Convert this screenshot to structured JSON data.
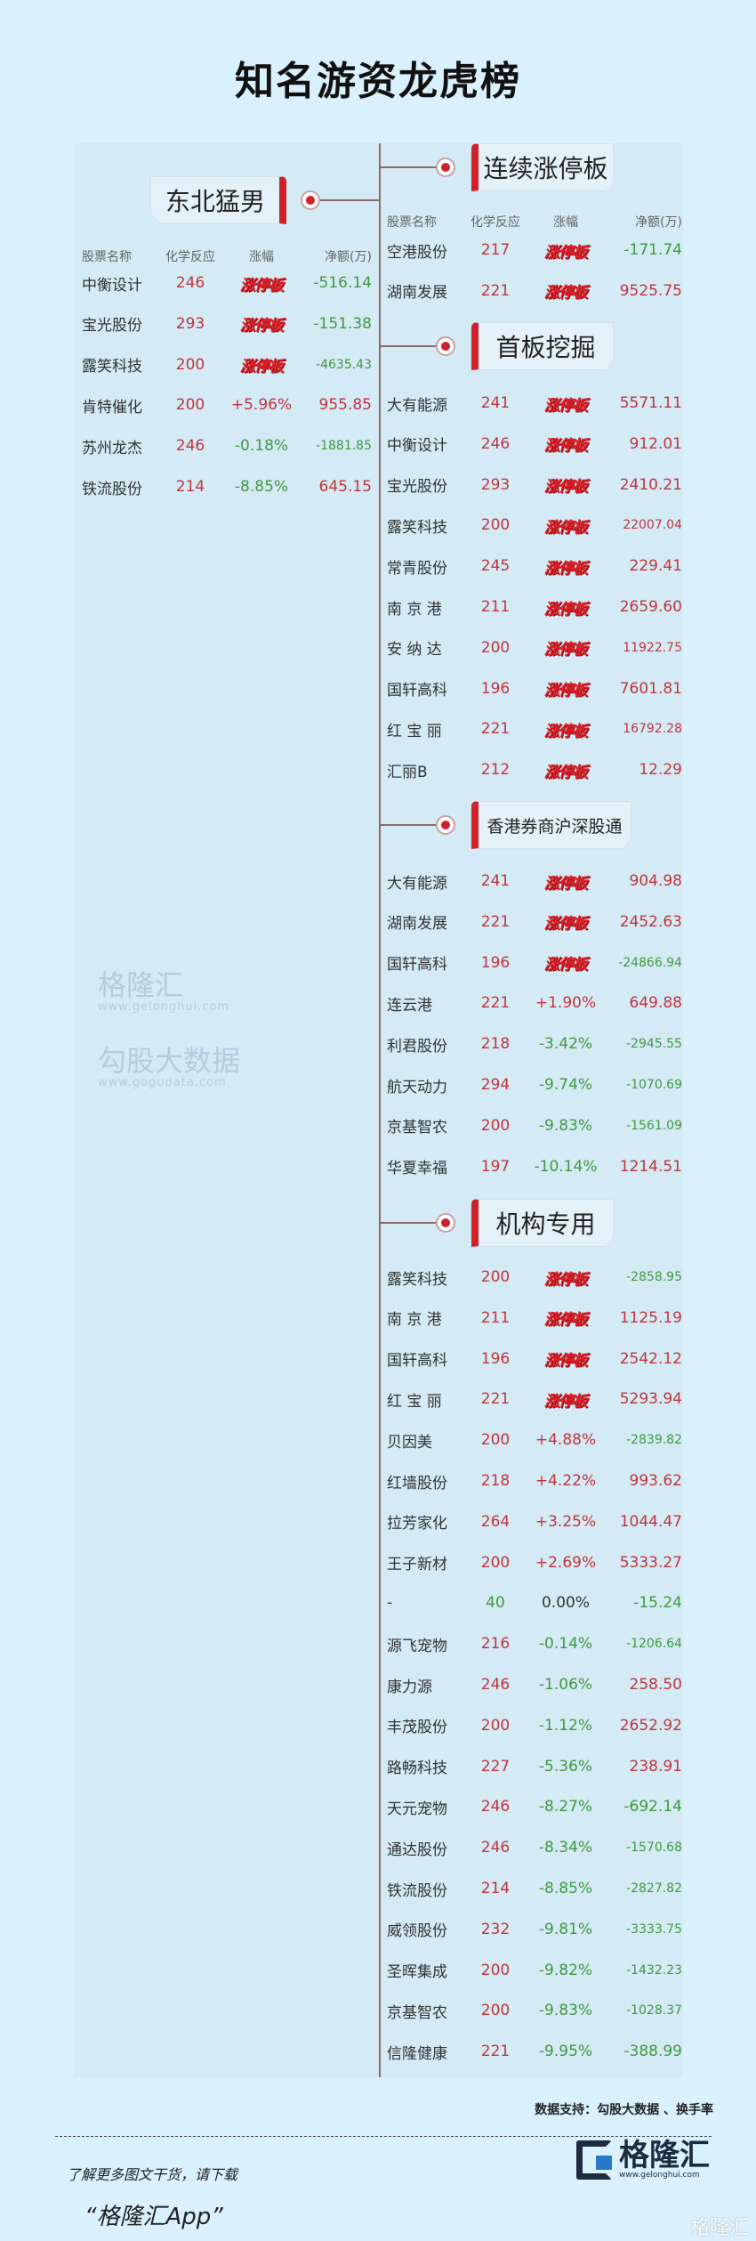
{
  "title": "知名游资龙虎榜",
  "headers": [
    "股票名称",
    "化学反应",
    "涨幅",
    "净额(万)"
  ],
  "limit_up_label": "涨停板",
  "colors": {
    "accent": "#d0202a",
    "positive": "#c0353d",
    "negative": "#3f9a3f",
    "background": "#d9f1fc"
  },
  "sections": [
    {
      "title": "东北猛男",
      "side": "left",
      "rows": [
        [
          "中衡设计",
          "246",
          "涨停板",
          "-516.14"
        ],
        [
          "宝光股份",
          "293",
          "涨停板",
          "-151.38"
        ],
        [
          "露笑科技",
          "200",
          "涨停板",
          "-4635.43"
        ],
        [
          "肯特催化",
          "200",
          "+5.96%",
          "955.85"
        ],
        [
          "苏州龙杰",
          "246",
          "-0.18%",
          "-1881.85"
        ],
        [
          "铁流股份",
          "214",
          "-8.85%",
          "645.15"
        ]
      ]
    },
    {
      "title": "连续涨停板",
      "side": "right",
      "rows": [
        [
          "空港股份",
          "217",
          "涨停板",
          "-171.74"
        ],
        [
          "湖南发展",
          "221",
          "涨停板",
          "9525.75"
        ]
      ]
    },
    {
      "title": "首板挖掘",
      "side": "right",
      "rows": [
        [
          "大有能源",
          "241",
          "涨停板",
          "5571.11"
        ],
        [
          "中衡设计",
          "246",
          "涨停板",
          "912.01"
        ],
        [
          "宝光股份",
          "293",
          "涨停板",
          "2410.21"
        ],
        [
          "露笑科技",
          "200",
          "涨停板",
          "22007.04"
        ],
        [
          "常青股份",
          "245",
          "涨停板",
          "229.41"
        ],
        [
          "南 京 港",
          "211",
          "涨停板",
          "2659.60"
        ],
        [
          "安 纳 达",
          "200",
          "涨停板",
          "11922.75"
        ],
        [
          "国轩高科",
          "196",
          "涨停板",
          "7601.81"
        ],
        [
          "红 宝 丽",
          "221",
          "涨停板",
          "16792.28"
        ],
        [
          "汇丽B",
          "212",
          "涨停板",
          "12.29"
        ]
      ]
    },
    {
      "title": "香港券商沪深股通",
      "side": "right",
      "rows": [
        [
          "大有能源",
          "241",
          "涨停板",
          "904.98"
        ],
        [
          "湖南发展",
          "221",
          "涨停板",
          "2452.63"
        ],
        [
          "国轩高科",
          "196",
          "涨停板",
          "-24866.94"
        ],
        [
          "连云港",
          "221",
          "+1.90%",
          "649.88"
        ],
        [
          "利君股份",
          "218",
          "-3.42%",
          "-2945.55"
        ],
        [
          "航天动力",
          "294",
          "-9.74%",
          "-1070.69"
        ],
        [
          "京基智农",
          "200",
          "-9.83%",
          "-1561.09"
        ],
        [
          "华夏幸福",
          "197",
          "-10.14%",
          "1214.51"
        ]
      ]
    },
    {
      "title": "机构专用",
      "side": "right",
      "rows": [
        [
          "露笑科技",
          "200",
          "涨停板",
          "-2858.95"
        ],
        [
          "南 京 港",
          "211",
          "涨停板",
          "1125.19"
        ],
        [
          "国轩高科",
          "196",
          "涨停板",
          "2542.12"
        ],
        [
          "红 宝 丽",
          "221",
          "涨停板",
          "5293.94"
        ],
        [
          "贝因美",
          "200",
          "+4.88%",
          "-2839.82"
        ],
        [
          "红墙股份",
          "218",
          "+4.22%",
          "993.62"
        ],
        [
          "拉芳家化",
          "264",
          "+3.25%",
          "1044.47"
        ],
        [
          "王子新材",
          "200",
          "+2.69%",
          "5333.27"
        ],
        [
          "-",
          "40",
          "0.00%",
          "-15.24"
        ],
        [
          "源飞宠物",
          "216",
          "-0.14%",
          "-1206.64"
        ],
        [
          "康力源",
          "246",
          "-1.06%",
          "258.50"
        ],
        [
          "丰茂股份",
          "200",
          "-1.12%",
          "2652.92"
        ],
        [
          "路畅科技",
          "227",
          "-5.36%",
          "238.91"
        ],
        [
          "天元宠物",
          "246",
          "-8.27%",
          "-692.14"
        ],
        [
          "通达股份",
          "246",
          "-8.34%",
          "-1570.68"
        ],
        [
          "铁流股份",
          "214",
          "-8.85%",
          "-2827.82"
        ],
        [
          "威领股份",
          "232",
          "-9.81%",
          "-3333.75"
        ],
        [
          "圣晖集成",
          "200",
          "-9.82%",
          "-1432.23"
        ],
        [
          "京基智农",
          "200",
          "-9.83%",
          "-1028.37"
        ],
        [
          "信隆健康",
          "221",
          "-9.95%",
          "-388.99"
        ]
      ]
    }
  ],
  "watermark": {
    "brand": "格隆汇",
    "brand_url": "www.gelonghui.com",
    "data": "勾股大数据",
    "data_url": "www.gogudata.com"
  },
  "footer": {
    "source": "数据支持：勾股大数据 、换手率",
    "download": "了解更多图文干货，请下载",
    "app": "“格隆汇App”",
    "logo_text": "格隆汇",
    "logo_url": "www.gelonghui.com",
    "corner": "格隆汇"
  }
}
